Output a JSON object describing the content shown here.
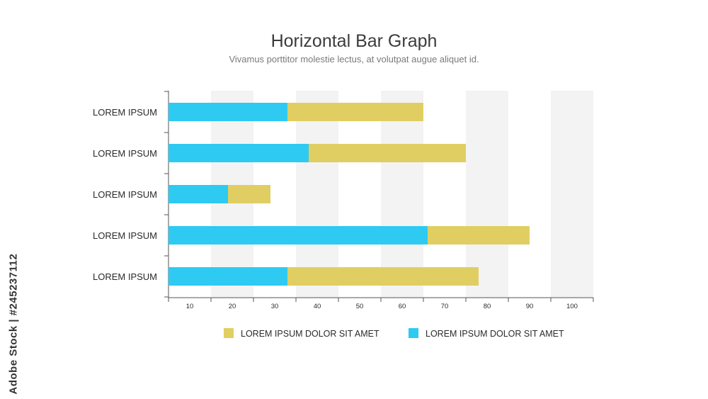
{
  "chart_data": {
    "type": "bar",
    "orientation": "horizontal",
    "stacked": true,
    "title": "Horizontal Bar Graph",
    "subtitle": "Vivamus porttitor molestie lectus, at volutpat augue aliquet id.",
    "categories": [
      "LOREM IPSUM",
      "LOREM IPSUM",
      "LOREM IPSUM",
      "LOREM IPSUM",
      "LOREM IPSUM"
    ],
    "series": [
      {
        "name": "LOREM IPSUM DOLOR SIT AMET",
        "color": "#2ecaf2",
        "values": [
          28,
          33,
          14,
          61,
          28
        ]
      },
      {
        "name": "LOREM IPSUM DOLOR SIT AMET",
        "color": "#e0ce63",
        "values": [
          32,
          37,
          10,
          24,
          45
        ]
      }
    ],
    "x_ticks": [
      10,
      20,
      30,
      40,
      50,
      60,
      70,
      80,
      90,
      100
    ],
    "xlim": [
      0,
      100
    ],
    "legend_position": "bottom",
    "legend_order": [
      1,
      0
    ],
    "grid": "alternating vertical bands",
    "band_color": "#f3f3f3"
  },
  "watermark": "Adobe Stock | #245237112"
}
